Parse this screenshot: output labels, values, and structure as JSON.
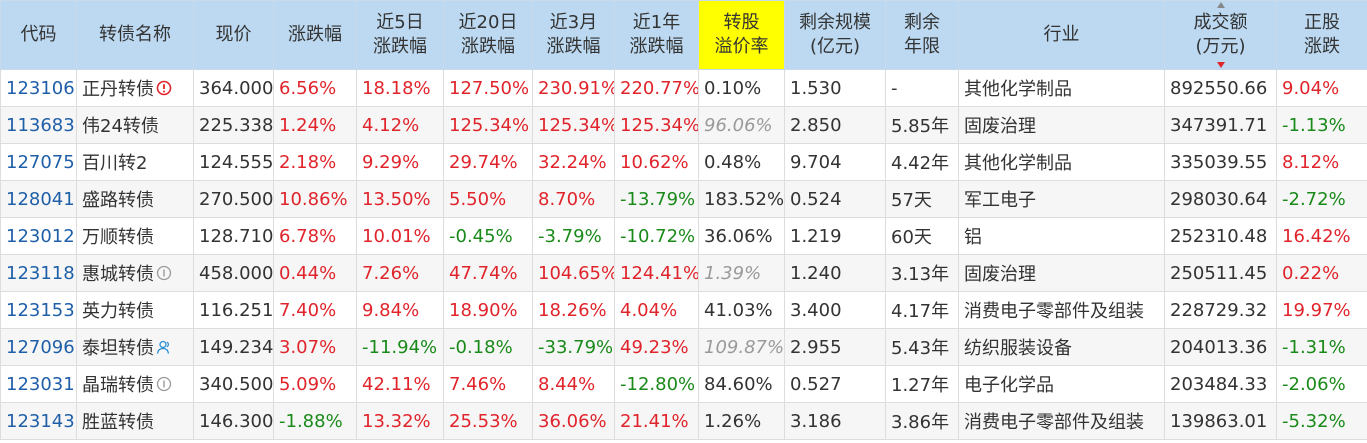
{
  "headers": {
    "code": "代码",
    "name": "转债名称",
    "price": "现价",
    "chg": "涨跌幅",
    "chg5d": [
      "近5日",
      "涨跌幅"
    ],
    "chg20d": [
      "近20日",
      "涨跌幅"
    ],
    "chg3m": [
      "近3月",
      "涨跌幅"
    ],
    "chg1y": [
      "近1年",
      "涨跌幅"
    ],
    "premium": [
      "转股",
      "溢价率"
    ],
    "scale": [
      "剩余规模",
      "(亿元)"
    ],
    "term": [
      "剩余",
      "年限"
    ],
    "industry": "行业",
    "amount": [
      "成交额",
      "(万元)"
    ],
    "stock_chg": [
      "正股",
      "涨跌"
    ]
  },
  "colors": {
    "up": "#e0242b",
    "down": "#1a8a1a",
    "header_bg": "#bcd9f1",
    "highlight": "#ffff00",
    "code": "#1f5fa8"
  },
  "rows": [
    {
      "code": "123106",
      "name": "正丹转债",
      "icon": "alert-icon",
      "price": "364.000",
      "chg": "6.56%",
      "chg5d": "18.18%",
      "chg20d": "127.50%",
      "chg3m": "230.91%",
      "chg1y": "220.77%",
      "premium": "0.10%",
      "premium_muted": false,
      "scale": "1.530",
      "term": "-",
      "industry": "其他化学制品",
      "amount": "892550.66",
      "stock_chg": "9.04%"
    },
    {
      "code": "113683",
      "name": "伟24转债",
      "icon": "",
      "price": "225.338",
      "chg": "1.24%",
      "chg5d": "4.12%",
      "chg20d": "125.34%",
      "chg3m": "125.34%",
      "chg1y": "125.34%",
      "premium": "96.06%",
      "premium_muted": true,
      "scale": "2.850",
      "term": "5.85年",
      "industry": "固废治理",
      "amount": "347391.71",
      "stock_chg": "-1.13%"
    },
    {
      "code": "127075",
      "name": "百川转2",
      "icon": "",
      "price": "124.555",
      "chg": "2.18%",
      "chg5d": "9.29%",
      "chg20d": "29.74%",
      "chg3m": "32.24%",
      "chg1y": "10.62%",
      "premium": "0.48%",
      "premium_muted": false,
      "scale": "9.704",
      "term": "4.42年",
      "industry": "其他化学制品",
      "amount": "335039.55",
      "stock_chg": "8.12%"
    },
    {
      "code": "128041",
      "name": "盛路转债",
      "icon": "",
      "price": "270.500",
      "chg": "10.86%",
      "chg5d": "13.50%",
      "chg20d": "5.50%",
      "chg3m": "8.70%",
      "chg1y": "-13.79%",
      "premium": "183.52%",
      "premium_muted": false,
      "scale": "0.524",
      "term": "57天",
      "industry": "军工电子",
      "amount": "298030.64",
      "stock_chg": "-2.72%"
    },
    {
      "code": "123012",
      "name": "万顺转债",
      "icon": "",
      "price": "128.710",
      "chg": "6.78%",
      "chg5d": "10.01%",
      "chg20d": "-0.45%",
      "chg3m": "-3.79%",
      "chg1y": "-10.72%",
      "premium": "36.06%",
      "premium_muted": false,
      "scale": "1.219",
      "term": "60天",
      "industry": "铝",
      "amount": "252310.48",
      "stock_chg": "16.42%"
    },
    {
      "code": "123118",
      "name": "惠城转债",
      "icon": "info-icon",
      "price": "458.000",
      "chg": "0.44%",
      "chg5d": "7.26%",
      "chg20d": "47.74%",
      "chg3m": "104.65%",
      "chg1y": "124.41%",
      "premium": "1.39%",
      "premium_muted": true,
      "scale": "1.240",
      "term": "3.13年",
      "industry": "固废治理",
      "amount": "250511.45",
      "stock_chg": "0.22%"
    },
    {
      "code": "123153",
      "name": "英力转债",
      "icon": "",
      "price": "116.251",
      "chg": "7.40%",
      "chg5d": "9.84%",
      "chg20d": "18.90%",
      "chg3m": "18.26%",
      "chg1y": "4.04%",
      "premium": "41.03%",
      "premium_muted": false,
      "scale": "3.400",
      "term": "4.17年",
      "industry": "消费电子零部件及组装",
      "amount": "228729.32",
      "stock_chg": "19.97%"
    },
    {
      "code": "127096",
      "name": "泰坦转债",
      "icon": "person-icon",
      "price": "149.234",
      "chg": "3.07%",
      "chg5d": "-11.94%",
      "chg20d": "-0.18%",
      "chg3m": "-33.79%",
      "chg1y": "49.23%",
      "premium": "109.87%",
      "premium_muted": true,
      "scale": "2.955",
      "term": "5.43年",
      "industry": "纺织服装设备",
      "amount": "204013.36",
      "stock_chg": "-1.31%"
    },
    {
      "code": "123031",
      "name": "晶瑞转债",
      "icon": "info-icon",
      "price": "340.500",
      "chg": "5.09%",
      "chg5d": "42.11%",
      "chg20d": "7.46%",
      "chg3m": "8.44%",
      "chg1y": "-12.80%",
      "premium": "84.60%",
      "premium_muted": false,
      "scale": "0.527",
      "term": "1.27年",
      "industry": "电子化学品",
      "amount": "203484.33",
      "stock_chg": "-2.06%"
    },
    {
      "code": "123143",
      "name": "胜蓝转债",
      "icon": "",
      "price": "146.300",
      "chg": "-1.88%",
      "chg5d": "13.32%",
      "chg20d": "25.53%",
      "chg3m": "36.06%",
      "chg1y": "21.41%",
      "premium": "1.26%",
      "premium_muted": false,
      "scale": "3.186",
      "term": "3.86年",
      "industry": "消费电子零部件及组装",
      "amount": "139863.01",
      "stock_chg": "-5.32%"
    }
  ]
}
